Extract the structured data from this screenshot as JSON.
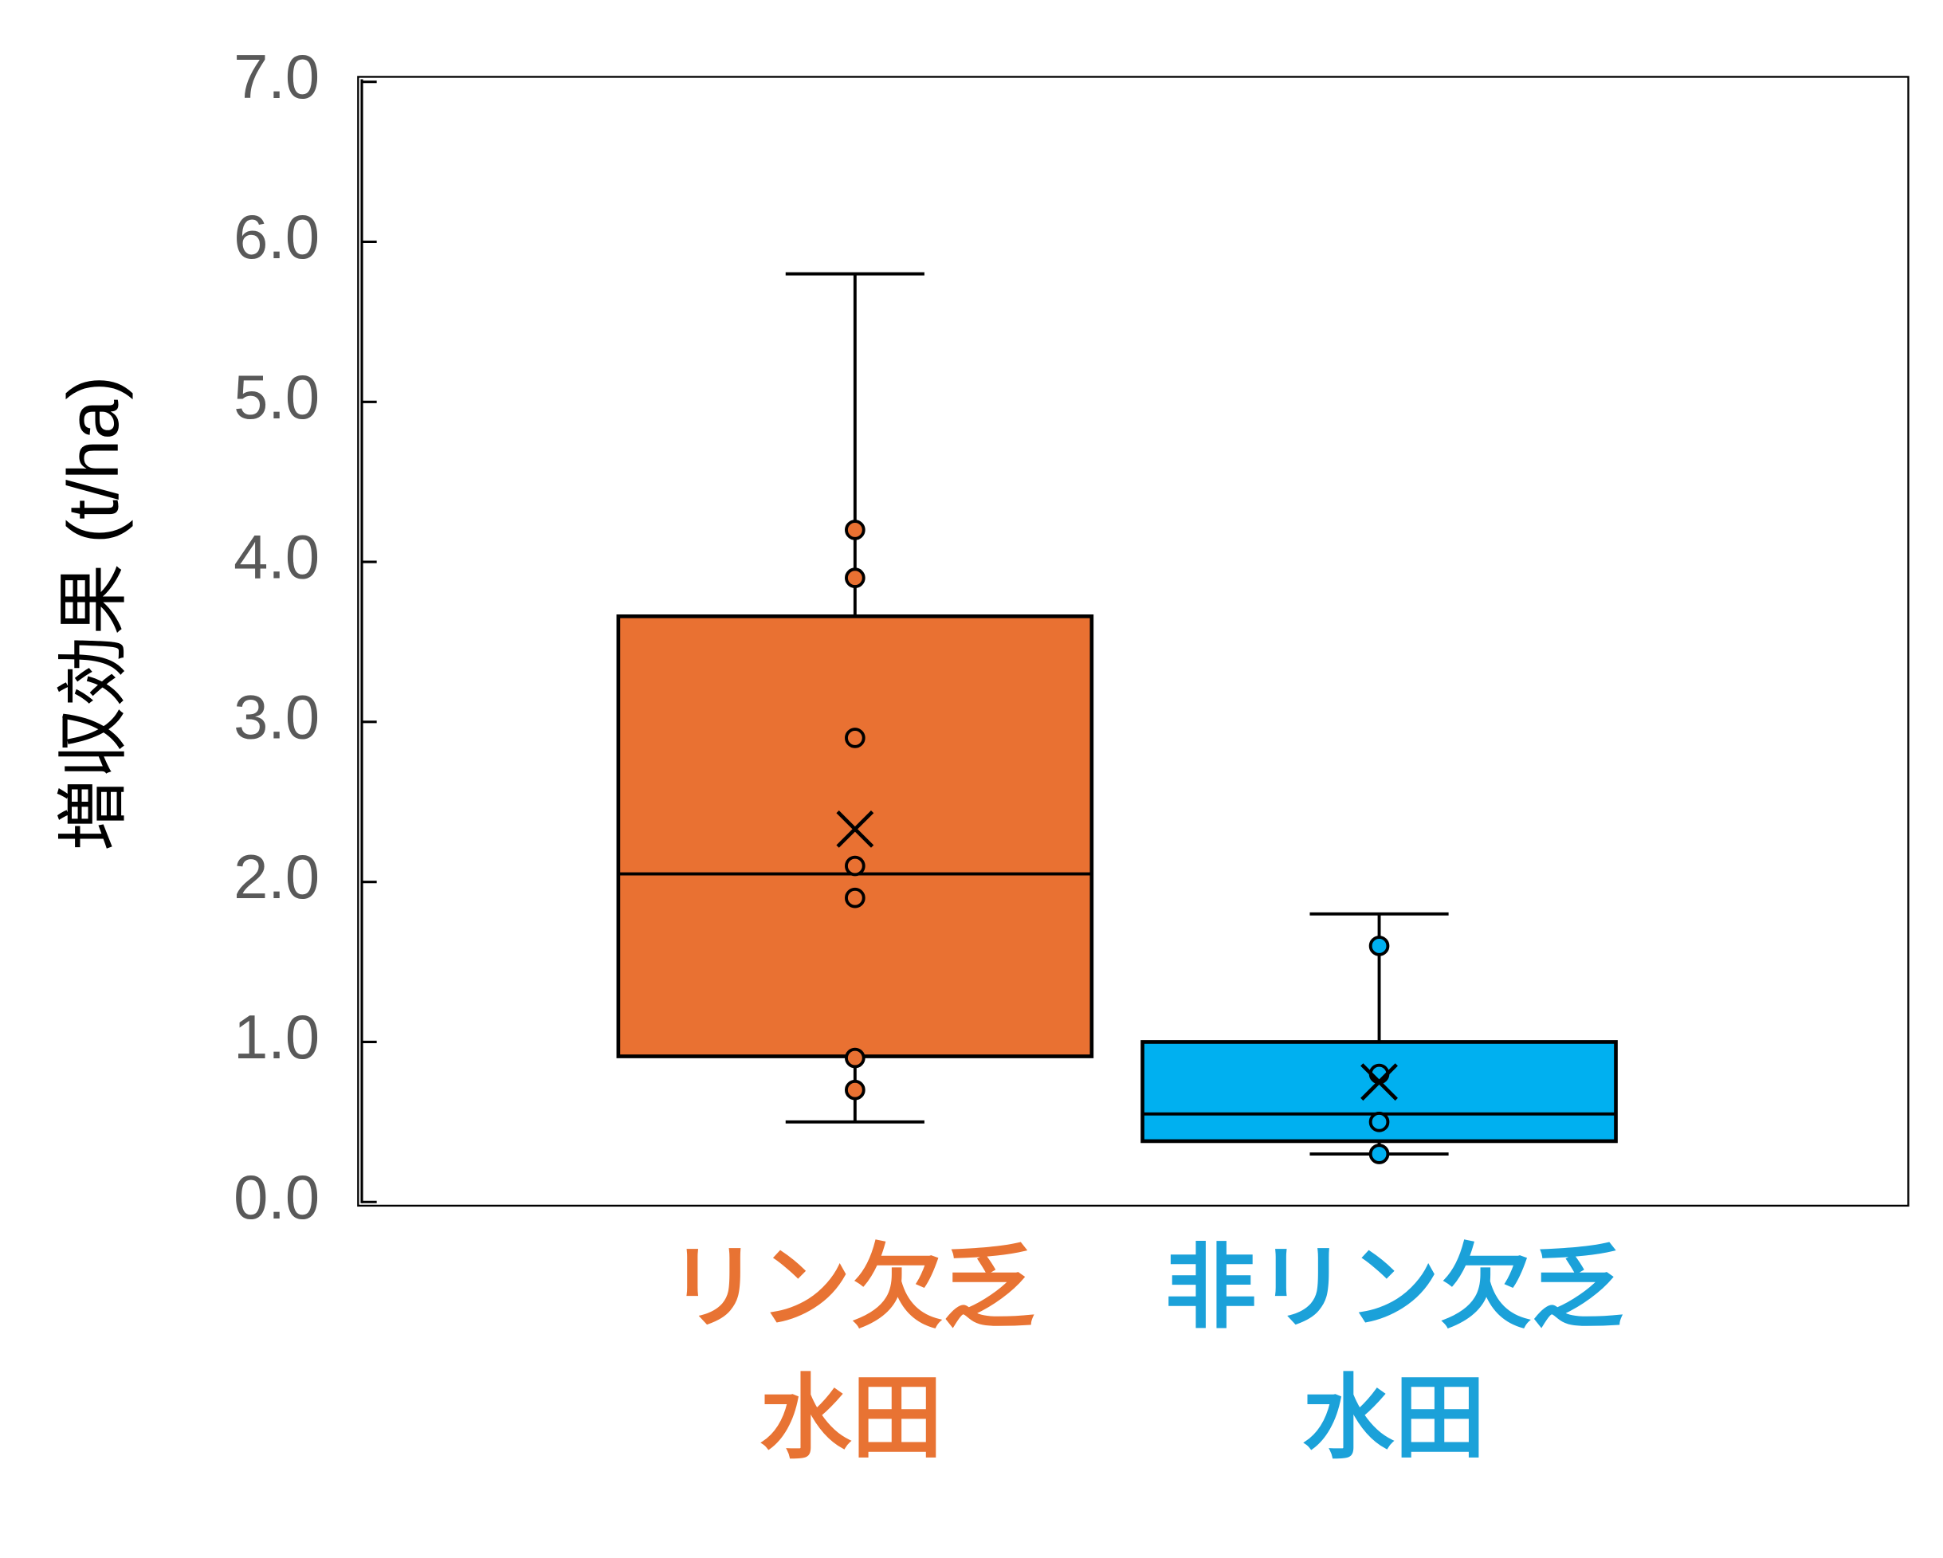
{
  "chart_data": {
    "type": "box",
    "y_label": "増収効果 (t/ha)",
    "ylim": [
      0,
      7
    ],
    "yticks": [
      {
        "value": 0,
        "label": "0.0"
      },
      {
        "value": 1,
        "label": "1.0"
      },
      {
        "value": 2,
        "label": "2.0"
      },
      {
        "value": 3,
        "label": "3.0"
      },
      {
        "value": 4,
        "label": "4.0"
      },
      {
        "value": 5,
        "label": "5.0"
      },
      {
        "value": 6,
        "label": "6.0"
      },
      {
        "value": 7,
        "label": "7.0"
      }
    ],
    "boxes": [
      {
        "category": [
          "リン欠乏",
          "水田"
        ],
        "color": "#e97132",
        "label_color": "#e87333",
        "whisker_low": 0.5,
        "q1": 0.91,
        "median": 2.05,
        "q3": 3.66,
        "whisker_high": 5.8,
        "mean": 2.33,
        "points": [
          4.2,
          3.9,
          2.9,
          2.1,
          1.9,
          0.9,
          0.7
        ]
      },
      {
        "category": [
          "非リン欠乏",
          "水田"
        ],
        "color": "#00b0f0",
        "label_color": "#1ba1d9",
        "whisker_low": 0.3,
        "q1": 0.38,
        "median": 0.55,
        "q3": 1.0,
        "whisker_high": 1.8,
        "mean": 0.75,
        "points": [
          1.6,
          0.8,
          0.5,
          0.3
        ]
      }
    ]
  }
}
